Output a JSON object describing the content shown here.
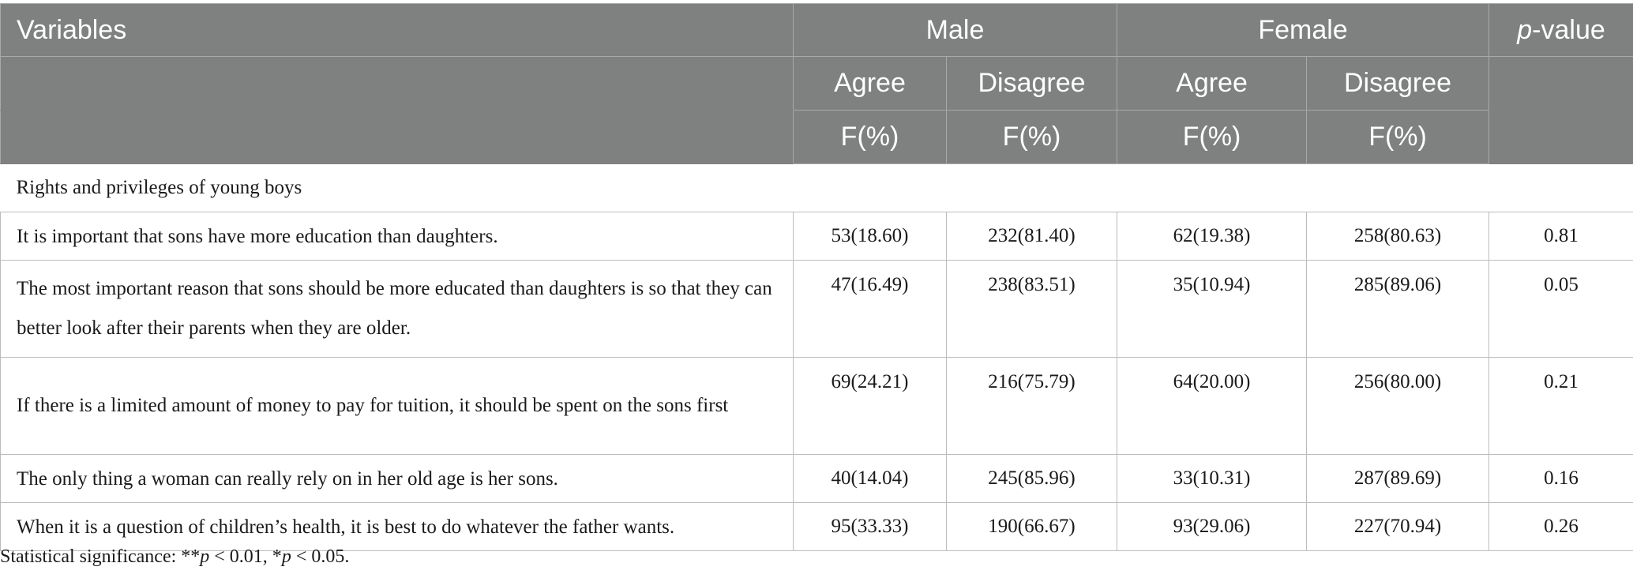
{
  "header": {
    "variables": "Variables",
    "male": "Male",
    "female": "Female",
    "pvalue_italic": "p",
    "pvalue_rest": "-value",
    "male_agree": "Agree",
    "male_disagree": "Disagree",
    "female_agree": "Agree",
    "female_disagree": "Disagree",
    "male_agree_unit": "F(%)",
    "male_disagree_unit": "F(%)",
    "female_agree_unit": "F(%)",
    "female_disagree_unit": "F(%)"
  },
  "section_title": "Rights and privileges of young boys",
  "rows": [
    {
      "variable": "It is important that sons have more education than daughters.",
      "male_agree": "53(18.60)",
      "male_disagree": "232(81.40)",
      "female_agree": "62(19.38)",
      "female_disagree": "258(80.63)",
      "p_value": "0.81"
    },
    {
      "variable": "The most important reason that sons should be more educated than daughters is so that they can better look after their parents when they are older.",
      "male_agree": "47(16.49)",
      "male_disagree": "238(83.51)",
      "female_agree": "35(10.94)",
      "female_disagree": "285(89.06)",
      "p_value": "0.05"
    },
    {
      "variable": "If there is a limited amount of money to pay for tuition, it should be spent on the sons first",
      "male_agree": "69(24.21)",
      "male_disagree": "216(75.79)",
      "female_agree": "64(20.00)",
      "female_disagree": "256(80.00)",
      "p_value": "0.21"
    },
    {
      "variable": "The only thing a woman can really rely on in her old age is her sons.",
      "male_agree": "40(14.04)",
      "male_disagree": "245(85.96)",
      "female_agree": "33(10.31)",
      "female_disagree": "287(89.69)",
      "p_value": "0.16"
    },
    {
      "variable": "When it is a question of children’s health, it is best to do whatever the father wants.",
      "male_agree": "95(33.33)",
      "male_disagree": "190(66.67)",
      "female_agree": "93(29.06)",
      "female_disagree": "227(70.94)",
      "p_value": "0.26"
    }
  ],
  "footnote": {
    "prefix": "Statistical significance: **",
    "p1": "p",
    "mid": " < 0.01, *",
    "p2": "p",
    "suffix": " < 0.05."
  }
}
